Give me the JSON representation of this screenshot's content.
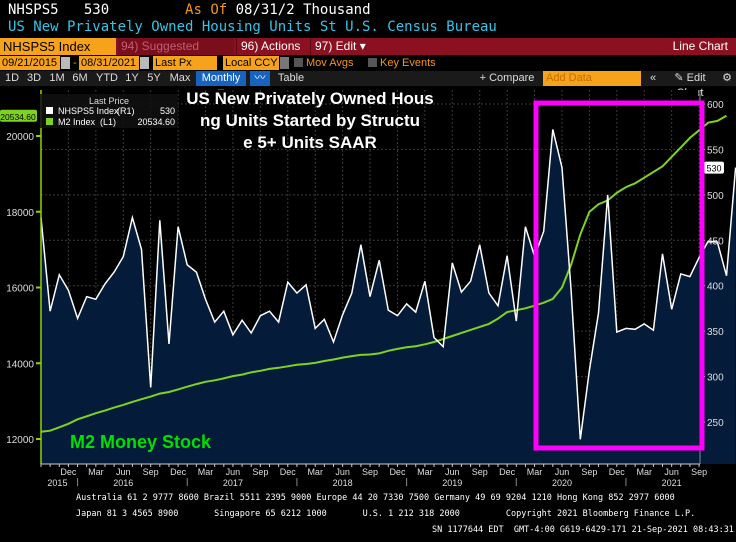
{
  "header": {
    "ticker": "NHSPS5",
    "last": "530",
    "as_of_label": "As Of",
    "as_of_date": "08/31/2",
    "units": "Thousand",
    "description": "US New Privately Owned Housing Units St U.S. Census Bureau"
  },
  "toolbar": {
    "security": "NHSPS5 Index",
    "suggested": "94) Suggested Charts",
    "actions": "96) Actions ▾",
    "edit": "97) Edit ▾",
    "chart_type": "Line Chart"
  },
  "options": {
    "start_date": "09/21/2015",
    "end_date": "08/31/2021",
    "field": "Last Px",
    "currency": "Local CCY",
    "mov_avgs": "Mov Avgs",
    "key_events": "Key Events",
    "dash": "-"
  },
  "ranges": {
    "items": [
      "1D",
      "3D",
      "1M",
      "6M",
      "YTD",
      "1Y",
      "5Y",
      "Max"
    ],
    "periodicity": "Monthly ▼",
    "table": "Table",
    "compare": "+ Compare ▾",
    "add_data_placeholder": "Add Data",
    "collapse": "«",
    "edit_chart": "✎ Edit Chart",
    "settings": "⚙"
  },
  "colors": {
    "plot_bg": "#000000",
    "area_fill": "#041c3a",
    "nhsps5_line": "#ffffff",
    "m2_line": "#7ed321",
    "highlight_box": "#ff00ff",
    "m2_annotation": "#00e000",
    "axis_green": "#8fd400"
  },
  "chart_data": {
    "type": "line",
    "title": "US New Privately Owned Housing Units Started by Structure 5+ Units SAAR",
    "annotation": "M2 Money Stock",
    "legend": {
      "header": "Last Price",
      "placement": "top-left",
      "entries": [
        {
          "name": "NHSPS5 Index",
          "axis": "(R1)",
          "value": "530",
          "color": "#ffffff"
        },
        {
          "name": "M2 Index",
          "axis": "(L1)",
          "value": "20534.60",
          "color": "#7ed321"
        }
      ]
    },
    "x_start": "2015-09",
    "x_end": "2021-09",
    "x_ticks": [
      "Dec",
      "Mar",
      "Jun",
      "Sep",
      "Dec",
      "Mar",
      "Jun",
      "Sep",
      "Dec",
      "Mar",
      "Jun",
      "Sep",
      "Dec",
      "Mar",
      "Jun",
      "Sep",
      "Dec",
      "Mar",
      "Jun",
      "Sep",
      "Dec",
      "Mar",
      "Jun",
      "Sep"
    ],
    "x_years": [
      "2015",
      "2016",
      "2017",
      "2018",
      "2019",
      "2020",
      "2021"
    ],
    "left_axis": {
      "label": "M2 Index (L1)",
      "ylim": [
        11500,
        21000
      ],
      "ticks": [
        12000,
        14000,
        16000,
        18000,
        20000
      ],
      "last_value_label": "20534.60"
    },
    "right_axis": {
      "label": "NHSPS5 Index (R1)",
      "ylim": [
        215,
        610
      ],
      "ticks": [
        250,
        300,
        350,
        400,
        450,
        500,
        550,
        600
      ],
      "last_value_label": "530"
    },
    "highlight_box": {
      "from": "2020-02",
      "to": "2021-08",
      "note": "pandemic period highlight"
    },
    "series": [
      {
        "name": "NHSPS5 Index",
        "axis": "right",
        "area": true,
        "values": [
          475,
          372,
          412,
          395,
          364,
          388,
          385,
          402,
          415,
          432,
          475,
          440,
          288,
          472,
          336,
          465,
          423,
          415,
          385,
          360,
          372,
          346,
          362,
          348,
          367,
          372,
          360,
          404,
          392,
          401,
          353,
          363,
          338,
          368,
          392,
          445,
          388,
          428,
          373,
          367,
          380,
          371,
          405,
          343,
          333,
          425,
          393,
          405,
          445,
          392,
          378,
          433,
          361,
          465,
          432,
          460,
          572,
          530,
          395,
          231,
          307,
          370,
          500,
          349,
          353,
          352,
          358,
          351,
          435,
          374,
          413,
          410,
          431,
          449,
          448,
          411,
          530
        ]
      },
      {
        "name": "M2 Index",
        "axis": "left",
        "area": false,
        "values": [
          12190,
          12220,
          12310,
          12400,
          12520,
          12600,
          12680,
          12750,
          12830,
          12900,
          12980,
          13050,
          13120,
          13200,
          13240,
          13310,
          13380,
          13450,
          13510,
          13550,
          13600,
          13660,
          13700,
          13760,
          13800,
          13850,
          13880,
          13920,
          13960,
          13980,
          14010,
          14060,
          14100,
          14150,
          14190,
          14220,
          14230,
          14260,
          14330,
          14380,
          14420,
          14450,
          14500,
          14560,
          14640,
          14720,
          14800,
          14880,
          14960,
          15040,
          15180,
          15350,
          15400,
          15450,
          15520,
          15600,
          15700,
          16000,
          16600,
          17400,
          18000,
          18200,
          18300,
          18500,
          18650,
          18750,
          18900,
          19050,
          19200,
          19450,
          19700,
          19950,
          20150,
          20350,
          20400,
          20534.6
        ]
      }
    ]
  },
  "footer": {
    "line1": "Australia 61 2 9777 8600 Brazil 5511 2395 9000 Europe 44 20 7330 7500 Germany 49 69 9204 1210 Hong Kong 852 2977 6000",
    "line2": "Japan 81 3 4565 8900       Singapore 65 6212 1000       U.S. 1 212 318 2000         Copyright 2021 Bloomberg Finance L.P.",
    "line3": "SN 1177644 EDT  GMT-4:00 G619-6429-171 21-Sep-2021 08:43:31"
  }
}
